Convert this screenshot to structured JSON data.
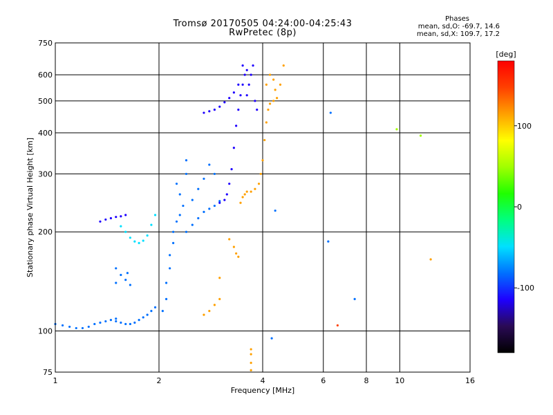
{
  "header": {
    "title_line1": "Tromsø 20170505 04:24:00-04:25:43",
    "title_line2": "RwPretec (8p)"
  },
  "phase_info": {
    "title": "Phases",
    "line1": "mean, sd,O: -69.7, 14.6",
    "line2": "mean, sd,X: 109.7, 17.2"
  },
  "chart_data": {
    "type": "scatter",
    "xlabel": "Frequency [MHz]",
    "ylabel": "Stationary phase Virtual Height [km]",
    "x_scale": "log",
    "y_scale": "log",
    "xlim": [
      1,
      16
    ],
    "ylim": [
      75,
      750
    ],
    "x_ticks": [
      1,
      2,
      4,
      6,
      8,
      10,
      16
    ],
    "x_tick_labels": [
      "1",
      "2",
      "4",
      "6",
      "8",
      "10",
      "16"
    ],
    "y_ticks": [
      75,
      100,
      200,
      300,
      400,
      500,
      600,
      750
    ],
    "y_tick_labels": [
      "75",
      "100",
      "200",
      "300",
      "400",
      "500",
      "600",
      "750"
    ],
    "grid": true,
    "colorbar": {
      "label": "[deg]",
      "range": [
        -180,
        180
      ],
      "tick_values": [
        100,
        0,
        -100
      ],
      "tick_labels": [
        "100",
        "0",
        "-100"
      ],
      "colors": [
        "#000000",
        "#2a0a55",
        "#1e00ff",
        "#0070ff",
        "#00e0ff",
        "#00ff80",
        "#20ff00",
        "#a0ff00",
        "#ffff00",
        "#ffa000",
        "#ff4000",
        "#ff0000"
      ]
    },
    "series": [
      {
        "phase": -85,
        "points": [
          [
            1.0,
            105
          ],
          [
            1.05,
            104
          ],
          [
            1.1,
            103
          ],
          [
            1.15,
            102
          ],
          [
            1.2,
            102
          ],
          [
            1.25,
            103
          ],
          [
            1.3,
            105
          ],
          [
            1.35,
            106
          ],
          [
            1.4,
            107
          ],
          [
            1.45,
            108
          ],
          [
            1.5,
            109
          ]
        ]
      },
      {
        "phase": -75,
        "points": [
          [
            1.5,
            107
          ],
          [
            1.55,
            106
          ],
          [
            1.6,
            105
          ],
          [
            1.65,
            105
          ],
          [
            1.7,
            106
          ],
          [
            1.75,
            108
          ],
          [
            1.8,
            110
          ],
          [
            1.85,
            112
          ],
          [
            1.9,
            115
          ],
          [
            1.95,
            118
          ]
        ]
      },
      {
        "phase": -110,
        "points": [
          [
            1.35,
            215
          ],
          [
            1.4,
            218
          ],
          [
            1.45,
            220
          ],
          [
            1.5,
            222
          ],
          [
            1.55,
            223
          ],
          [
            1.6,
            225
          ]
        ]
      },
      {
        "phase": -65,
        "points": [
          [
            1.55,
            208
          ],
          [
            1.6,
            200
          ],
          [
            1.65,
            192
          ],
          [
            1.7,
            187
          ],
          [
            1.75,
            185
          ],
          [
            1.8,
            188
          ],
          [
            1.85,
            195
          ],
          [
            1.9,
            210
          ],
          [
            1.95,
            225
          ]
        ]
      },
      {
        "phase": -70,
        "points": [
          [
            1.5,
            155
          ],
          [
            1.55,
            148
          ],
          [
            1.6,
            143
          ],
          [
            1.62,
            150
          ],
          [
            1.65,
            138
          ],
          [
            1.5,
            140
          ]
        ]
      },
      {
        "phase": -80,
        "points": [
          [
            2.05,
            115
          ],
          [
            2.1,
            125
          ],
          [
            2.1,
            140
          ],
          [
            2.15,
            155
          ],
          [
            2.15,
            170
          ],
          [
            2.2,
            185
          ],
          [
            2.2,
            200
          ],
          [
            2.25,
            215
          ],
          [
            2.3,
            225
          ],
          [
            2.35,
            240
          ],
          [
            2.3,
            260
          ],
          [
            2.25,
            280
          ],
          [
            2.4,
            300
          ]
        ]
      },
      {
        "phase": -75,
        "points": [
          [
            2.4,
            200
          ],
          [
            2.5,
            210
          ],
          [
            2.6,
            220
          ],
          [
            2.7,
            230
          ],
          [
            2.8,
            235
          ],
          [
            2.9,
            240
          ],
          [
            3.0,
            248
          ],
          [
            2.5,
            250
          ],
          [
            2.6,
            270
          ],
          [
            2.7,
            290
          ],
          [
            2.4,
            330
          ],
          [
            2.8,
            320
          ],
          [
            2.9,
            300
          ]
        ]
      },
      {
        "phase": -100,
        "points": [
          [
            3.0,
            245
          ],
          [
            3.1,
            250
          ],
          [
            3.15,
            260
          ],
          [
            3.2,
            280
          ],
          [
            3.25,
            310
          ],
          [
            3.3,
            360
          ],
          [
            3.35,
            420
          ],
          [
            3.4,
            470
          ],
          [
            3.45,
            520
          ],
          [
            3.5,
            560
          ],
          [
            3.55,
            600
          ],
          [
            3.5,
            640
          ],
          [
            3.6,
            620
          ]
        ]
      },
      {
        "phase": -105,
        "points": [
          [
            2.7,
            460
          ],
          [
            2.8,
            465
          ],
          [
            2.9,
            470
          ],
          [
            3.0,
            480
          ],
          [
            3.1,
            495
          ],
          [
            3.2,
            510
          ],
          [
            3.3,
            530
          ],
          [
            3.4,
            560
          ]
        ]
      },
      {
        "phase": -110,
        "points": [
          [
            3.6,
            520
          ],
          [
            3.65,
            560
          ],
          [
            3.7,
            600
          ],
          [
            3.75,
            640
          ],
          [
            3.8,
            500
          ],
          [
            3.85,
            470
          ]
        ]
      },
      {
        "phase": 110,
        "points": [
          [
            3.45,
            245
          ],
          [
            3.5,
            255
          ],
          [
            3.55,
            260
          ],
          [
            3.6,
            265
          ],
          [
            3.7,
            265
          ],
          [
            3.8,
            270
          ],
          [
            3.9,
            280
          ],
          [
            3.95,
            300
          ],
          [
            4.0,
            330
          ],
          [
            4.05,
            380
          ],
          [
            4.1,
            430
          ],
          [
            4.15,
            470
          ],
          [
            4.2,
            490
          ],
          [
            4.3,
            500
          ]
        ]
      },
      {
        "phase": 120,
        "points": [
          [
            4.1,
            560
          ],
          [
            4.2,
            600
          ],
          [
            4.3,
            580
          ],
          [
            4.35,
            540
          ],
          [
            4.4,
            510
          ],
          [
            4.5,
            560
          ],
          [
            4.6,
            640
          ]
        ]
      },
      {
        "phase": 115,
        "points": [
          [
            3.2,
            190
          ],
          [
            3.3,
            180
          ],
          [
            3.35,
            172
          ],
          [
            3.4,
            168
          ],
          [
            2.7,
            112
          ],
          [
            2.8,
            115
          ],
          [
            2.9,
            120
          ],
          [
            3.0,
            125
          ],
          [
            3.0,
            145
          ]
        ]
      },
      {
        "phase": 120,
        "points": [
          [
            3.7,
            88
          ],
          [
            3.7,
            85
          ],
          [
            3.7,
            80
          ],
          [
            3.7,
            76
          ]
        ]
      },
      {
        "phase": -95,
        "points": [
          [
            4.35,
            232
          ],
          [
            6.2,
            187
          ],
          [
            6.3,
            460
          ],
          [
            7.4,
            125
          ],
          [
            4.25,
            95
          ]
        ]
      },
      {
        "phase": 160,
        "points": [
          [
            6.6,
            104
          ]
        ]
      },
      {
        "phase": 125,
        "points": [
          [
            12.3,
            165
          ]
        ]
      },
      {
        "phase": 60,
        "points": [
          [
            9.8,
            410
          ],
          [
            11.5,
            392
          ]
        ]
      }
    ]
  }
}
